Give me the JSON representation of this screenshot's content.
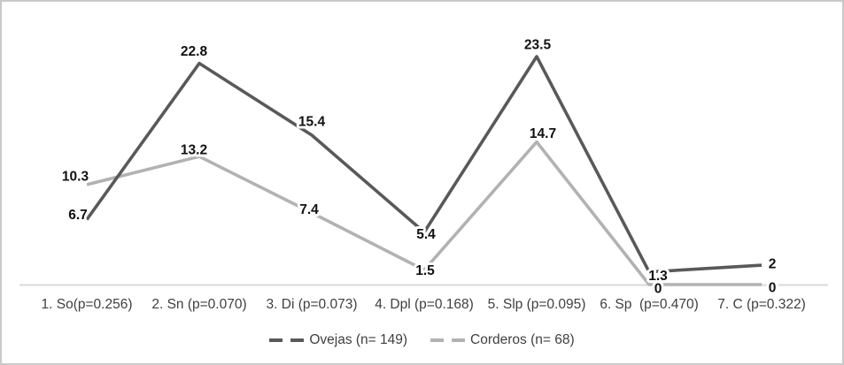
{
  "chart_data": {
    "type": "line",
    "title": "",
    "categories": [
      "1. So(p=0.256)",
      "2. Sn (p=0.070)",
      "3. Di (p=0.073)",
      "4. Dpl (p=0.168)",
      "5. Slp (p=0.095)",
      "6. Sp  (p=0.470)",
      "7. C (p=0.322)"
    ],
    "series": [
      {
        "name": "Ovejas (n= 149)",
        "color": "#595959",
        "values": [
          6.7,
          22.8,
          15.4,
          5.4,
          23.5,
          1.3,
          2
        ]
      },
      {
        "name": "Corderos (n= 68)",
        "color": "#b2b2b2",
        "values": [
          10.3,
          13.2,
          7.4,
          1.5,
          14.7,
          0,
          0
        ]
      }
    ],
    "data_labels_visible": true,
    "ylim": [
      0,
      25
    ],
    "grid": false,
    "y_axis_visible": false,
    "legend_position": "bottom",
    "x_axis_line_color": "#d9d9d9",
    "axis_text_color": "#3f3f3f",
    "data_label_color": "#111111",
    "background": "#ffffff"
  }
}
